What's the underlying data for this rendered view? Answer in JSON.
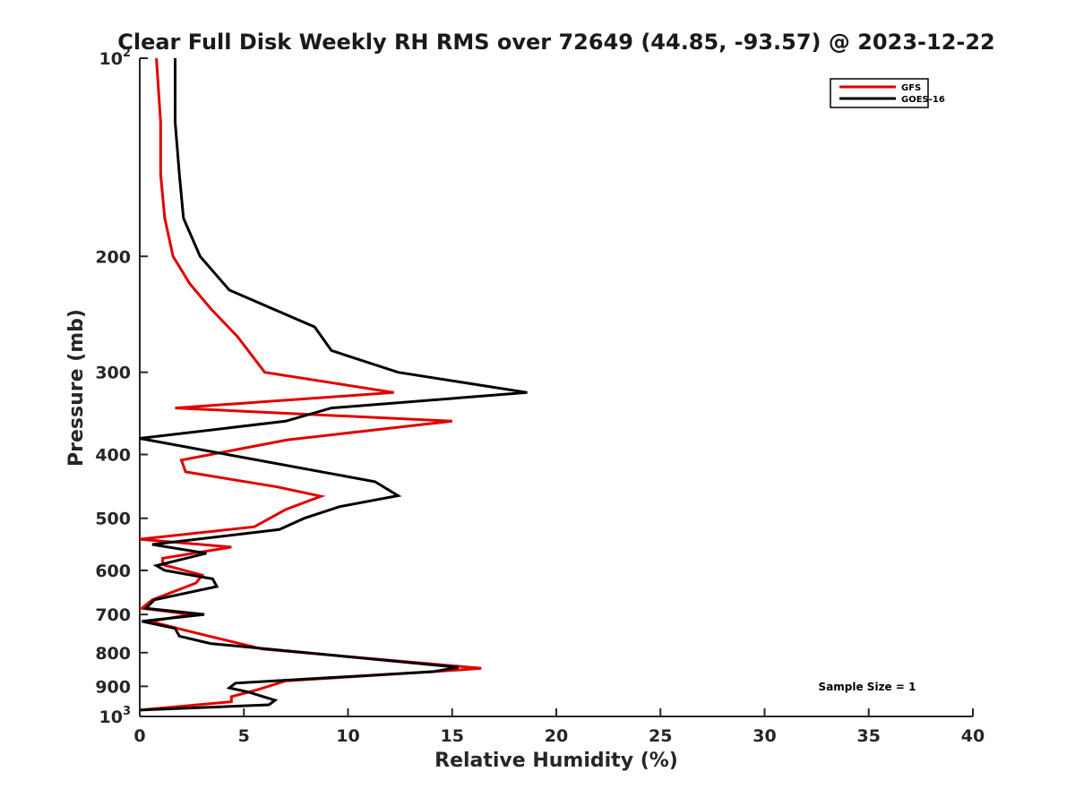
{
  "chart_data": {
    "type": "line",
    "title": "Clear Full Disk Weekly RH RMS over 72649 (44.85, -93.57) @ 2023-12-22",
    "xlabel": "Relative Humidity (%)",
    "ylabel": "Pressure (mb)",
    "xlim": [
      0,
      40
    ],
    "ylim": [
      100,
      1000
    ],
    "yscale": "log",
    "y_reversed": true,
    "grid": false,
    "legend_position": "top-right",
    "x_ticks": [
      "0",
      "5",
      "10",
      "15",
      "20",
      "25",
      "30",
      "35",
      "40"
    ],
    "y_ticks": [
      {
        "value": 100,
        "base": "10",
        "exp": "2"
      },
      {
        "value": 200,
        "label": "200"
      },
      {
        "value": 300,
        "label": "300"
      },
      {
        "value": 400,
        "label": "400"
      },
      {
        "value": 500,
        "label": "500"
      },
      {
        "value": 600,
        "label": "600"
      },
      {
        "value": 700,
        "label": "700"
      },
      {
        "value": 800,
        "label": "800"
      },
      {
        "value": 900,
        "label": "900"
      },
      {
        "value": 1000,
        "base": "10",
        "exp": "3"
      }
    ],
    "series": [
      {
        "name": "GFS",
        "color": "#e00000",
        "points": [
          [
            0.8,
            100
          ],
          [
            1.0,
            125
          ],
          [
            1.0,
            150
          ],
          [
            1.2,
            175
          ],
          [
            1.6,
            200
          ],
          [
            2.4,
            220
          ],
          [
            3.4,
            240
          ],
          [
            4.7,
            265
          ],
          [
            6.0,
            300
          ],
          [
            12.2,
            322
          ],
          [
            1.7,
            340
          ],
          [
            15.0,
            356
          ],
          [
            7.1,
            380
          ],
          [
            2.0,
            408
          ],
          [
            2.2,
            425
          ],
          [
            6.6,
            448
          ],
          [
            8.7,
            463
          ],
          [
            7.0,
            485
          ],
          [
            5.5,
            515
          ],
          [
            0.0,
            538
          ],
          [
            4.4,
            553
          ],
          [
            1.1,
            575
          ],
          [
            1.1,
            588
          ],
          [
            3.0,
            610
          ],
          [
            2.7,
            627
          ],
          [
            0.6,
            665
          ],
          [
            0.1,
            685
          ],
          [
            2.5,
            700
          ],
          [
            0.5,
            717
          ],
          [
            2.2,
            740
          ],
          [
            3.7,
            760
          ],
          [
            5.9,
            790
          ],
          [
            16.4,
            845
          ],
          [
            14.8,
            852
          ],
          [
            7.0,
            883
          ],
          [
            5.6,
            912
          ],
          [
            4.4,
            933
          ],
          [
            4.4,
            950
          ],
          [
            0.0,
            978
          ]
        ]
      },
      {
        "name": "GOES-16",
        "color": "#000000",
        "points": [
          [
            1.7,
            100
          ],
          [
            1.7,
            125
          ],
          [
            1.9,
            150
          ],
          [
            2.1,
            175
          ],
          [
            2.9,
            200
          ],
          [
            4.3,
            225
          ],
          [
            8.4,
            256
          ],
          [
            9.2,
            278
          ],
          [
            12.4,
            300
          ],
          [
            18.6,
            322
          ],
          [
            9.2,
            340
          ],
          [
            7.0,
            356
          ],
          [
            0.0,
            378
          ],
          [
            11.3,
            440
          ],
          [
            12.4,
            462
          ],
          [
            9.6,
            480
          ],
          [
            7.9,
            500
          ],
          [
            6.7,
            520
          ],
          [
            0.6,
            548
          ],
          [
            3.2,
            565
          ],
          [
            0.8,
            590
          ],
          [
            1.2,
            600
          ],
          [
            3.5,
            618
          ],
          [
            3.7,
            635
          ],
          [
            0.7,
            665
          ],
          [
            0.3,
            685
          ],
          [
            3.1,
            700
          ],
          [
            0.1,
            717
          ],
          [
            1.7,
            735
          ],
          [
            1.9,
            755
          ],
          [
            3.4,
            775
          ],
          [
            15.3,
            842
          ],
          [
            14.1,
            855
          ],
          [
            4.6,
            890
          ],
          [
            4.3,
            905
          ],
          [
            5.2,
            918
          ],
          [
            6.5,
            945
          ],
          [
            6.2,
            960
          ],
          [
            0.0,
            978
          ]
        ]
      }
    ],
    "annotation": "Sample Size = 1"
  }
}
